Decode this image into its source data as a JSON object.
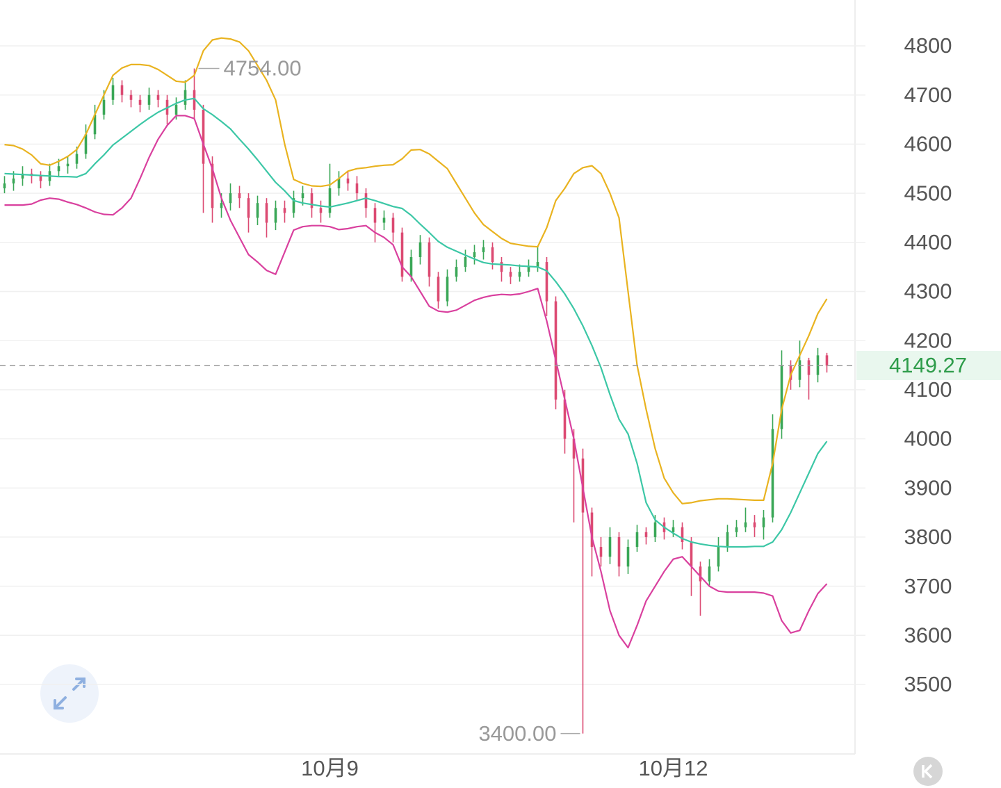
{
  "chart_data": {
    "type": "candlestick",
    "categories": [
      null,
      null,
      null,
      null,
      null,
      null,
      null,
      null,
      null,
      null,
      null,
      null,
      null,
      null,
      null,
      null,
      null,
      null,
      null,
      null,
      null,
      null,
      null,
      null,
      null,
      null,
      null,
      null,
      null,
      null,
      null,
      null,
      null,
      null,
      null,
      null,
      "10月9",
      null,
      null,
      null,
      null,
      null,
      null,
      null,
      null,
      null,
      null,
      null,
      null,
      null,
      null,
      null,
      null,
      null,
      null,
      null,
      null,
      null,
      null,
      null,
      null,
      null,
      null,
      null,
      null,
      null,
      null,
      null,
      null,
      null,
      null,
      null,
      null,
      null,
      "10月12",
      null,
      null,
      null,
      null,
      null,
      null,
      null,
      null,
      null,
      null,
      null,
      null,
      null,
      null,
      null,
      null,
      null
    ],
    "open": [
      4510,
      4520,
      4530,
      4540,
      4535,
      4525,
      4545,
      4555,
      4560,
      4580,
      4620,
      4660,
      4690,
      4720,
      4700,
      4690,
      4680,
      4700,
      4690,
      4660,
      4680,
      4710,
      4670,
      4560,
      4470,
      4480,
      4500,
      4490,
      4450,
      4480,
      4440,
      4470,
      4460,
      4490,
      4500,
      4470,
      4460,
      4510,
      4530,
      4520,
      4500,
      4470,
      4440,
      4450,
      4420,
      4330,
      4370,
      4400,
      4330,
      4280,
      4330,
      4350,
      4370,
      4380,
      4390,
      4360,
      4340,
      4330,
      4340,
      4350,
      4360,
      4280,
      4080,
      4000,
      3960,
      3850,
      3780,
      3760,
      3800,
      3740,
      3780,
      3810,
      3800,
      3830,
      3810,
      3820,
      3790,
      3740,
      3710,
      3740,
      3780,
      3810,
      3820,
      3830,
      3820,
      3840,
      4020,
      4150,
      4120,
      4160,
      4130,
      4170
    ],
    "high": [
      4535,
      4545,
      4555,
      4550,
      4545,
      4560,
      4570,
      4575,
      4595,
      4640,
      4680,
      4710,
      4735,
      4730,
      4710,
      4700,
      4715,
      4710,
      4700,
      4695,
      4730,
      4754,
      4680,
      4575,
      4500,
      4520,
      4515,
      4500,
      4495,
      4490,
      4485,
      4485,
      4505,
      4515,
      4510,
      4485,
      4560,
      4545,
      4545,
      4535,
      4510,
      4480,
      4465,
      4460,
      4430,
      4385,
      4415,
      4410,
      4340,
      4345,
      4365,
      4385,
      4395,
      4405,
      4400,
      4370,
      4350,
      4355,
      4365,
      4390,
      4370,
      4290,
      4100,
      4020,
      3980,
      3860,
      3800,
      3820,
      3810,
      3795,
      3825,
      3820,
      3845,
      3840,
      3835,
      3830,
      3800,
      3750,
      3755,
      3800,
      3825,
      3835,
      3860,
      3845,
      3855,
      4050,
      4180,
      4160,
      4200,
      4165,
      4185,
      4175
    ],
    "low": [
      4500,
      4505,
      4515,
      4520,
      4510,
      4515,
      4535,
      4540,
      4550,
      4570,
      4610,
      4650,
      4680,
      4685,
      4675,
      4665,
      4670,
      4675,
      4640,
      4650,
      4670,
      4650,
      4460,
      4440,
      4450,
      4465,
      4470,
      4420,
      4435,
      4410,
      4425,
      4440,
      4450,
      4475,
      4450,
      4440,
      4450,
      4495,
      4505,
      4485,
      4450,
      4400,
      4425,
      4400,
      4320,
      4320,
      4355,
      4310,
      4265,
      4270,
      4320,
      4340,
      4355,
      4365,
      4345,
      4320,
      4315,
      4320,
      4330,
      4340,
      4250,
      4060,
      3970,
      3830,
      3400,
      3720,
      3740,
      3745,
      3720,
      3725,
      3770,
      3785,
      3790,
      3795,
      3800,
      3775,
      3680,
      3640,
      3700,
      3730,
      3770,
      3800,
      3810,
      3800,
      3795,
      3830,
      4000,
      4100,
      4105,
      4080,
      4115,
      4135
    ],
    "close": [
      4520,
      4530,
      4540,
      4535,
      4525,
      4545,
      4555,
      4560,
      4580,
      4620,
      4660,
      4690,
      4720,
      4700,
      4690,
      4680,
      4700,
      4690,
      4660,
      4680,
      4710,
      4670,
      4560,
      4470,
      4480,
      4500,
      4490,
      4450,
      4480,
      4440,
      4470,
      4460,
      4490,
      4500,
      4470,
      4460,
      4510,
      4530,
      4520,
      4500,
      4470,
      4440,
      4450,
      4420,
      4330,
      4370,
      4400,
      4330,
      4280,
      4330,
      4350,
      4370,
      4380,
      4390,
      4360,
      4340,
      4330,
      4340,
      4350,
      4360,
      4280,
      4080,
      4000,
      3960,
      3850,
      3780,
      3760,
      3800,
      3740,
      3780,
      3810,
      3800,
      3830,
      3810,
      3820,
      3790,
      3740,
      3710,
      3740,
      3780,
      3810,
      3820,
      3830,
      3820,
      3840,
      4020,
      4150,
      4120,
      4160,
      4130,
      4170,
      4149.27
    ],
    "up_color": "#3aa757",
    "down_color": "#dc4a72",
    "series": [
      {
        "color": "#e9b320",
        "values": [
          4599,
          4597,
          4590,
          4578,
          4560,
          4557,
          4565,
          4575,
          4589,
          4620,
          4660,
          4700,
          4740,
          4755,
          4762,
          4762,
          4760,
          4752,
          4740,
          4728,
          4726,
          4740,
          4790,
          4812,
          4816,
          4814,
          4808,
          4790,
          4760,
          4730,
          4690,
          4600,
          4528,
          4520,
          4515,
          4514,
          4517,
          4530,
          4545,
          4550,
          4552,
          4555,
          4557,
          4558,
          4570,
          4588,
          4589,
          4580,
          4565,
          4550,
          4520,
          4490,
          4460,
          4436,
          4422,
          4408,
          4398,
          4395,
          4392,
          4391,
          4430,
          4485,
          4510,
          4540,
          4552,
          4556,
          4540,
          4500,
          4450,
          4300,
          4150,
          4060,
          3980,
          3920,
          3890,
          3868,
          3870,
          3874,
          3876,
          3878,
          3878,
          3877,
          3876,
          3875,
          3875,
          3950,
          4060,
          4130,
          4170,
          4210,
          4255,
          4285
        ]
      },
      {
        "color": "#3cc7a6",
        "values": [
          4540,
          4539,
          4538,
          4537,
          4536,
          4535,
          4534,
          4534,
          4533,
          4540,
          4560,
          4578,
          4598,
          4612,
          4626,
          4640,
          4653,
          4665,
          4674,
          4683,
          4690,
          4693,
          4672,
          4660,
          4646,
          4631,
          4610,
          4590,
          4568,
          4545,
          4522,
          4505,
          4485,
          4480,
          4477,
          4474,
          4472,
          4476,
          4480,
          4485,
          4490,
          4485,
          4479,
          4473,
          4469,
          4455,
          4437,
          4420,
          4402,
          4390,
          4382,
          4374,
          4366,
          4359,
          4356,
          4355,
          4354,
          4352,
          4351,
          4350,
          4342,
          4320,
          4295,
          4265,
          4230,
          4190,
          4145,
          4090,
          4040,
          4010,
          3950,
          3870,
          3835,
          3820,
          3808,
          3797,
          3790,
          3786,
          3783,
          3781,
          3780,
          3780,
          3780,
          3781,
          3781,
          3790,
          3815,
          3850,
          3890,
          3930,
          3970,
          3995
        ]
      },
      {
        "color": "#d9409e",
        "values": [
          4476,
          4476,
          4476,
          4478,
          4486,
          4490,
          4488,
          4482,
          4477,
          4470,
          4462,
          4457,
          4456,
          4470,
          4490,
          4530,
          4573,
          4610,
          4638,
          4658,
          4658,
          4652,
          4600,
          4550,
          4490,
          4445,
          4410,
          4375,
          4360,
          4343,
          4335,
          4380,
          4425,
          4432,
          4434,
          4434,
          4432,
          4426,
          4428,
          4432,
          4434,
          4420,
          4410,
          4395,
          4350,
          4330,
          4300,
          4270,
          4260,
          4258,
          4262,
          4272,
          4282,
          4288,
          4292,
          4294,
          4293,
          4295,
          4300,
          4306,
          4240,
          4160,
          4080,
          4000,
          3900,
          3800,
          3730,
          3650,
          3600,
          3575,
          3620,
          3670,
          3700,
          3730,
          3755,
          3760,
          3740,
          3720,
          3700,
          3690,
          3688,
          3688,
          3688,
          3688,
          3686,
          3680,
          3630,
          3605,
          3610,
          3650,
          3685,
          3705
        ]
      }
    ],
    "max_label": {
      "value": 4754,
      "label": "4754.00"
    },
    "min_label": {
      "value": 3400,
      "label": "3400.00"
    },
    "last_price": 4149.27,
    "last_price_color": "#2e9c4a",
    "ylim": [
      3358.5,
      4893.4
    ],
    "yticks": [
      3500,
      3600,
      3700,
      3800,
      3900,
      4000,
      4100,
      4200,
      4300,
      4400,
      4500,
      4600,
      4700,
      4800
    ],
    "grid": true
  }
}
